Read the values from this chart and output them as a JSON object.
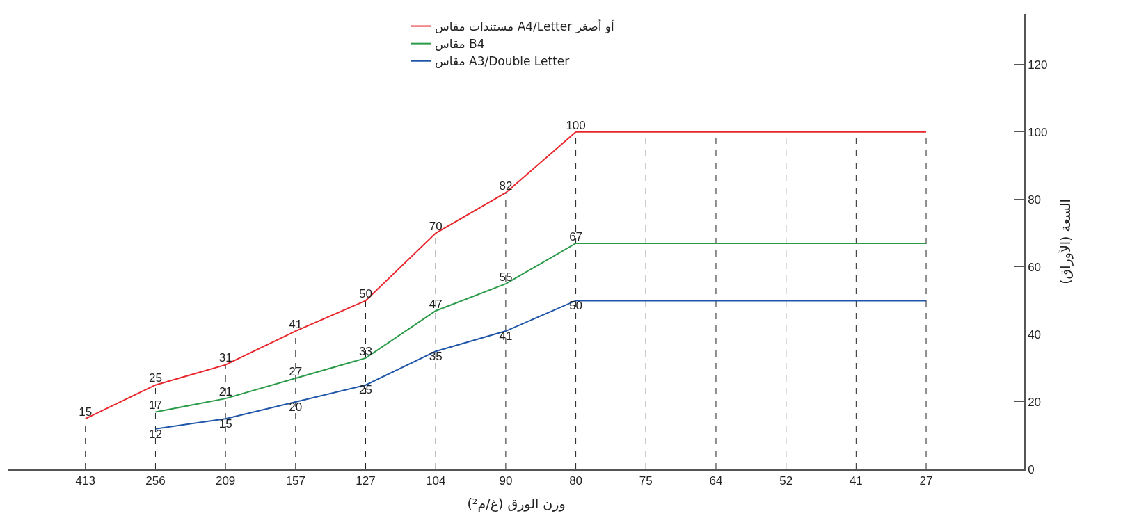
{
  "chart_data": {
    "type": "line",
    "xlabel": "وزن الورق (غ/م²)",
    "ylabel": "السعة (الأوراق)",
    "categories": [
      "413",
      "256",
      "209",
      "157",
      "127",
      "104",
      "90",
      "80",
      "75",
      "64",
      "52",
      "41",
      "27"
    ],
    "series": [
      {
        "name": "مستندات مقاس A4/Letter أو أصغر",
        "color": "#e8262b",
        "values": [
          15,
          25,
          31,
          41,
          50,
          70,
          82,
          100,
          100,
          100,
          100,
          100,
          100
        ],
        "value_labels": [
          "15",
          "25",
          "31",
          "41",
          "50",
          "70",
          "82",
          "100",
          null,
          null,
          null,
          null,
          null
        ]
      },
      {
        "name": "مقاس B4",
        "color": "#2a9a48",
        "values": [
          null,
          17,
          21,
          27,
          33,
          47,
          55,
          67,
          67,
          67,
          67,
          67,
          67
        ],
        "value_labels": [
          null,
          "17",
          "21",
          "27",
          "33",
          "47",
          "55",
          "67",
          null,
          null,
          null,
          null,
          null
        ]
      },
      {
        "name": "مقاس A3/Double Letter",
        "color": "#1f56a8",
        "values": [
          null,
          12,
          15,
          20,
          25,
          35,
          41,
          50,
          50,
          50,
          50,
          50,
          50
        ],
        "value_labels": [
          null,
          "12",
          "15",
          "20",
          "25",
          "35",
          "41",
          "50",
          null,
          null,
          null,
          null,
          null
        ]
      }
    ],
    "ylim": [
      0,
      135
    ],
    "yticks": [
      0,
      20,
      40,
      60,
      80,
      100,
      120
    ],
    "grid": "x",
    "legend": "top",
    "marker": "none",
    "line_style": "solid"
  }
}
